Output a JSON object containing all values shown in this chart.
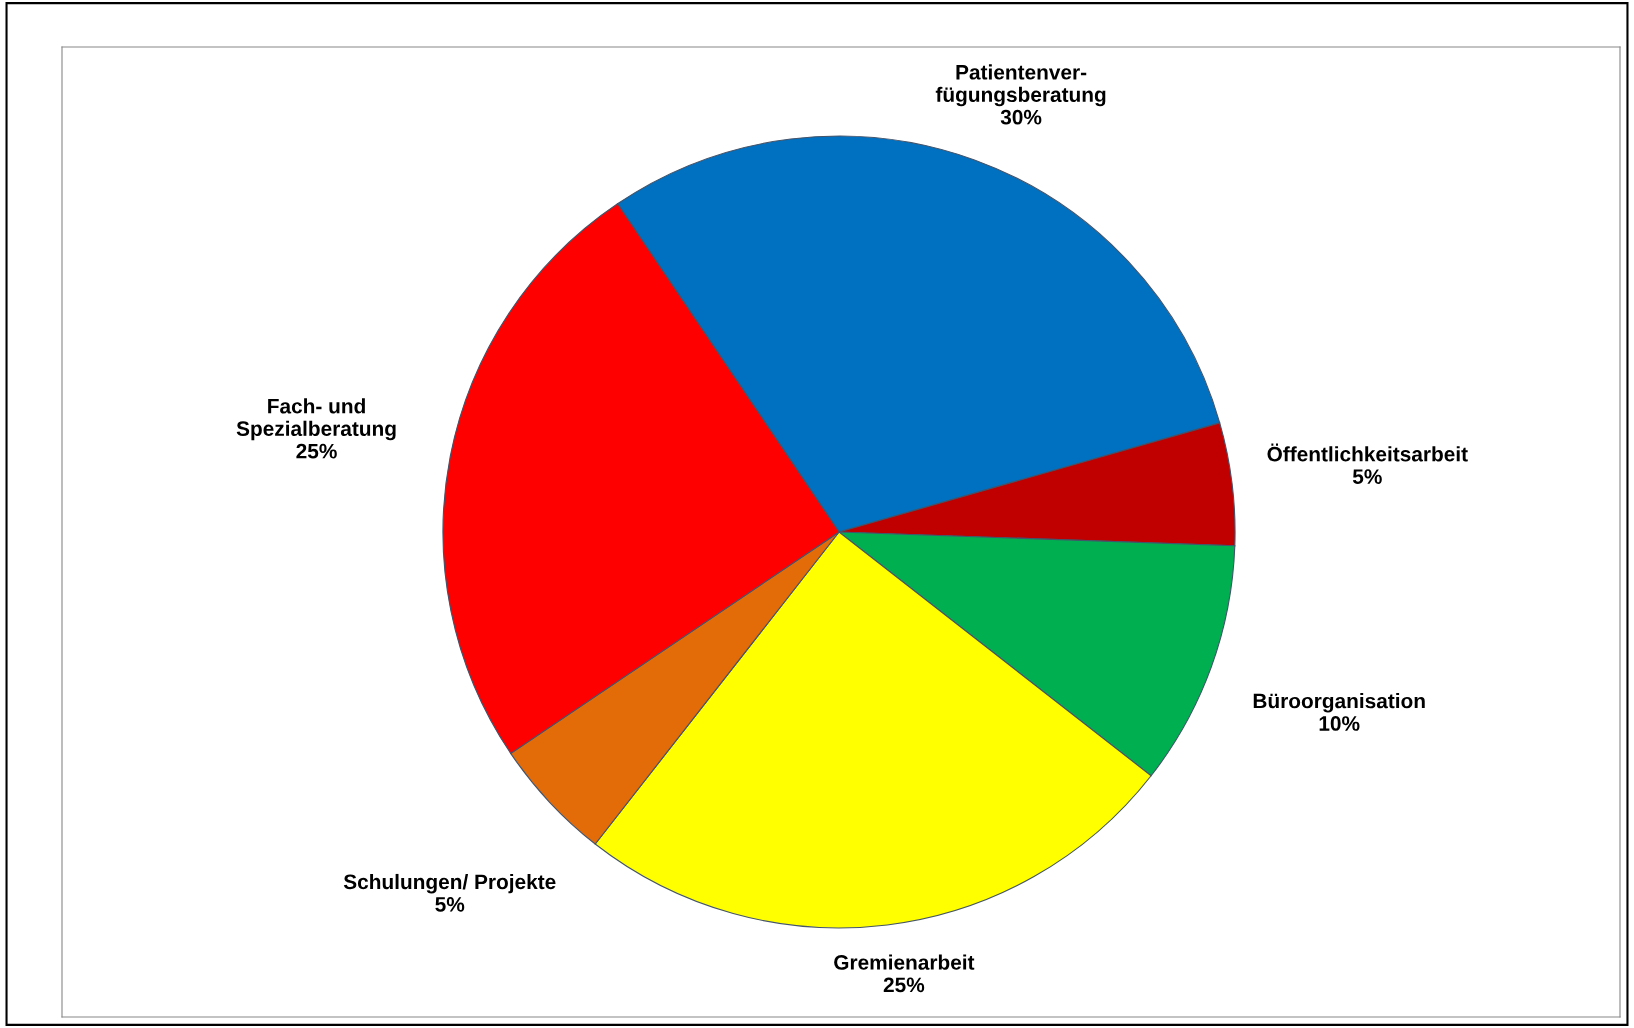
{
  "chart_data": {
    "type": "pie",
    "categories": [
      "Patientenver-\nfügungsberatung",
      "Öffentlichkeitsarbeit",
      "Büroorganisation",
      "Gremienarbeit",
      "Schulungen/ Projekte",
      "Fach- und\nSpezialberatung"
    ],
    "values": [
      30,
      5,
      10,
      25,
      5,
      25
    ],
    "value_labels": [
      "30%",
      "5%",
      "10%",
      "25%",
      "5%",
      "25%"
    ],
    "colors": [
      "#0070c0",
      "#c00000",
      "#00b050",
      "#ffff00",
      "#e36c09",
      "#ff0000"
    ],
    "legend": false
  }
}
